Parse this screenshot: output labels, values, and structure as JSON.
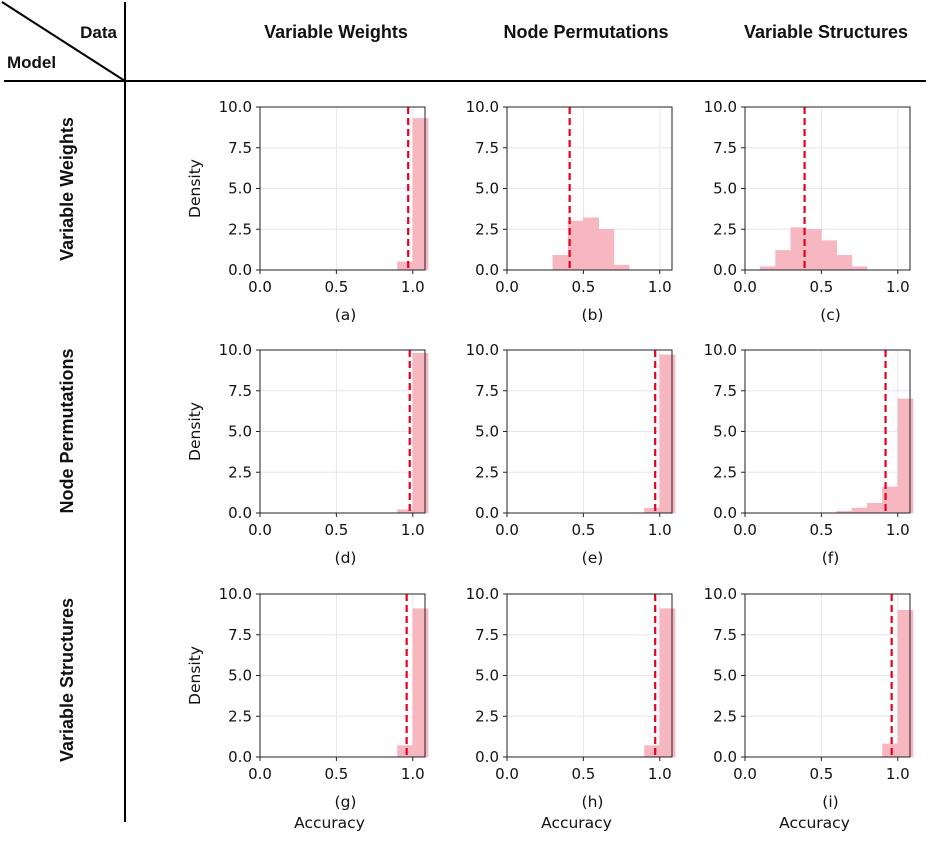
{
  "header": {
    "data_label": "Data",
    "model_label": "Model",
    "columns": [
      "Variable Weights",
      "Node Permutations",
      "Variable Structures"
    ],
    "rows": [
      "Variable Weights",
      "Node Permutations",
      "Variable Structures"
    ]
  },
  "chart_data": [
    {
      "type": "bar",
      "panel": "(a)",
      "row": 0,
      "col": 0,
      "bin_width": 0.1,
      "bins": [
        0.0,
        0.1,
        0.2,
        0.3,
        0.4,
        0.5,
        0.6,
        0.7,
        0.8,
        0.9,
        1.0
      ],
      "densities": [
        0,
        0,
        0,
        0,
        0,
        0,
        0,
        0,
        0,
        0.5,
        9.3
      ],
      "mean": 0.97,
      "xlim": [
        0.0,
        1.08
      ],
      "ylim": [
        0,
        10
      ],
      "xticks": [
        "0.0",
        "0.5",
        "1.0"
      ],
      "yticks": [
        "0.0",
        "2.5",
        "5.0",
        "7.5",
        "10.0"
      ],
      "ylabel": "Density",
      "xlabel": ""
    },
    {
      "type": "bar",
      "panel": "(b)",
      "row": 0,
      "col": 1,
      "bin_width": 0.1,
      "bins": [
        0.0,
        0.1,
        0.2,
        0.3,
        0.4,
        0.5,
        0.6,
        0.7,
        0.8,
        0.9,
        1.0
      ],
      "densities": [
        0,
        0,
        0,
        0.9,
        3.0,
        3.2,
        2.5,
        0.3,
        0,
        0,
        0
      ],
      "mean": 0.41,
      "xlim": [
        0.0,
        1.08
      ],
      "ylim": [
        0,
        10
      ],
      "xticks": [
        "0.0",
        "0.5",
        "1.0"
      ],
      "yticks": [
        "0.0",
        "2.5",
        "5.0",
        "7.5",
        "10.0"
      ],
      "ylabel": "",
      "xlabel": ""
    },
    {
      "type": "bar",
      "panel": "(c)",
      "row": 0,
      "col": 2,
      "bin_width": 0.1,
      "bins": [
        0.0,
        0.1,
        0.2,
        0.3,
        0.4,
        0.5,
        0.6,
        0.7,
        0.8,
        0.9,
        1.0
      ],
      "densities": [
        0,
        0.2,
        1.2,
        2.6,
        2.5,
        1.8,
        0.9,
        0.2,
        0,
        0,
        0
      ],
      "mean": 0.39,
      "xlim": [
        0.0,
        1.08
      ],
      "ylim": [
        0,
        10
      ],
      "xticks": [
        "0.0",
        "0.5",
        "1.0"
      ],
      "yticks": [
        "0.0",
        "2.5",
        "5.0",
        "7.5",
        "10.0"
      ],
      "ylabel": "",
      "xlabel": ""
    },
    {
      "type": "bar",
      "panel": "(d)",
      "row": 1,
      "col": 0,
      "bin_width": 0.1,
      "bins": [
        0.0,
        0.1,
        0.2,
        0.3,
        0.4,
        0.5,
        0.6,
        0.7,
        0.8,
        0.9,
        1.0
      ],
      "densities": [
        0,
        0,
        0,
        0,
        0,
        0,
        0,
        0,
        0,
        0.2,
        9.8
      ],
      "mean": 0.98,
      "xlim": [
        0.0,
        1.08
      ],
      "ylim": [
        0,
        10
      ],
      "xticks": [
        "0.0",
        "0.5",
        "1.0"
      ],
      "yticks": [
        "0.0",
        "2.5",
        "5.0",
        "7.5",
        "10.0"
      ],
      "ylabel": "Density",
      "xlabel": ""
    },
    {
      "type": "bar",
      "panel": "(e)",
      "row": 1,
      "col": 1,
      "bin_width": 0.1,
      "bins": [
        0.0,
        0.1,
        0.2,
        0.3,
        0.4,
        0.5,
        0.6,
        0.7,
        0.8,
        0.9,
        1.0
      ],
      "densities": [
        0,
        0,
        0,
        0,
        0,
        0,
        0,
        0,
        0,
        0.3,
        9.7
      ],
      "mean": 0.97,
      "xlim": [
        0.0,
        1.08
      ],
      "ylim": [
        0,
        10
      ],
      "xticks": [
        "0.0",
        "0.5",
        "1.0"
      ],
      "yticks": [
        "0.0",
        "2.5",
        "5.0",
        "7.5",
        "10.0"
      ],
      "ylabel": "",
      "xlabel": ""
    },
    {
      "type": "bar",
      "panel": "(f)",
      "row": 1,
      "col": 2,
      "bin_width": 0.1,
      "bins": [
        0.0,
        0.1,
        0.2,
        0.3,
        0.4,
        0.5,
        0.6,
        0.7,
        0.8,
        0.9,
        1.0
      ],
      "densities": [
        0,
        0,
        0,
        0,
        0,
        0,
        0.1,
        0.3,
        0.6,
        1.6,
        7.0
      ],
      "mean": 0.92,
      "xlim": [
        0.0,
        1.08
      ],
      "ylim": [
        0,
        10
      ],
      "xticks": [
        "0.0",
        "0.5",
        "1.0"
      ],
      "yticks": [
        "0.0",
        "2.5",
        "5.0",
        "7.5",
        "10.0"
      ],
      "ylabel": "",
      "xlabel": ""
    },
    {
      "type": "bar",
      "panel": "(g)",
      "row": 2,
      "col": 0,
      "bin_width": 0.1,
      "bins": [
        0.0,
        0.1,
        0.2,
        0.3,
        0.4,
        0.5,
        0.6,
        0.7,
        0.8,
        0.9,
        1.0
      ],
      "densities": [
        0,
        0,
        0,
        0,
        0,
        0,
        0,
        0,
        0,
        0.7,
        9.1
      ],
      "mean": 0.96,
      "xlim": [
        0.0,
        1.08
      ],
      "ylim": [
        0,
        10
      ],
      "xticks": [
        "0.0",
        "0.5",
        "1.0"
      ],
      "yticks": [
        "0.0",
        "2.5",
        "5.0",
        "7.5",
        "10.0"
      ],
      "ylabel": "Density",
      "xlabel": "Accuracy"
    },
    {
      "type": "bar",
      "panel": "(h)",
      "row": 2,
      "col": 1,
      "bin_width": 0.1,
      "bins": [
        0.0,
        0.1,
        0.2,
        0.3,
        0.4,
        0.5,
        0.6,
        0.7,
        0.8,
        0.9,
        1.0
      ],
      "densities": [
        0,
        0,
        0,
        0,
        0,
        0,
        0,
        0,
        0,
        0.7,
        9.1
      ],
      "mean": 0.97,
      "xlim": [
        0.0,
        1.08
      ],
      "ylim": [
        0,
        10
      ],
      "xticks": [
        "0.0",
        "0.5",
        "1.0"
      ],
      "yticks": [
        "0.0",
        "2.5",
        "5.0",
        "7.5",
        "10.0"
      ],
      "ylabel": "",
      "xlabel": "Accuracy"
    },
    {
      "type": "bar",
      "panel": "(i)",
      "row": 2,
      "col": 2,
      "bin_width": 0.1,
      "bins": [
        0.0,
        0.1,
        0.2,
        0.3,
        0.4,
        0.5,
        0.6,
        0.7,
        0.8,
        0.9,
        1.0
      ],
      "densities": [
        0,
        0,
        0,
        0,
        0,
        0,
        0,
        0,
        0,
        0.8,
        9.0
      ],
      "mean": 0.96,
      "xlim": [
        0.0,
        1.08
      ],
      "ylim": [
        0,
        10
      ],
      "xticks": [
        "0.0",
        "0.5",
        "1.0"
      ],
      "yticks": [
        "0.0",
        "2.5",
        "5.0",
        "7.5",
        "10.0"
      ],
      "ylabel": "",
      "xlabel": "Accuracy"
    }
  ]
}
